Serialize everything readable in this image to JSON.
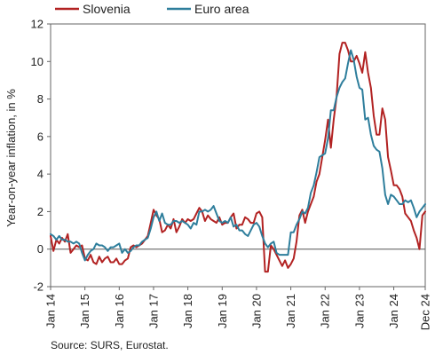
{
  "chart_data": {
    "type": "line",
    "title": "",
    "xlabel": "",
    "ylabel": "Year-on-year inflation, in %",
    "ylim": [
      -2,
      12
    ],
    "yticks": [
      -2,
      0,
      2,
      4,
      6,
      8,
      10,
      12
    ],
    "xrange": [
      2014.0,
      2024.917
    ],
    "xtick_labels": [
      "Jan 14",
      "Jan 15",
      "Jan 16",
      "Jan 17",
      "Jan 18",
      "Jan 19",
      "Jan 20",
      "Jan 21",
      "Jan 22",
      "Jan 23",
      "Jan 24",
      "Dec 24"
    ],
    "grid": false,
    "legend_position": "top",
    "source": "Source: SURS, Eurostat.",
    "colors": {
      "Slovenia": "#B22222",
      "Euro area": "#2E7E9C",
      "zero_line": "#555555"
    },
    "series": [
      {
        "name": "Slovenia",
        "x": [
          2014.0,
          2014.083,
          2014.167,
          2014.25,
          2014.333,
          2014.417,
          2014.5,
          2014.583,
          2014.667,
          2014.75,
          2014.833,
          2014.917,
          2015.0,
          2015.083,
          2015.167,
          2015.25,
          2015.333,
          2015.417,
          2015.5,
          2015.583,
          2015.667,
          2015.75,
          2015.833,
          2015.917,
          2016.0,
          2016.083,
          2016.167,
          2016.25,
          2016.333,
          2016.417,
          2016.5,
          2016.583,
          2016.667,
          2016.75,
          2016.833,
          2016.917,
          2017.0,
          2017.083,
          2017.167,
          2017.25,
          2017.333,
          2017.417,
          2017.5,
          2017.583,
          2017.667,
          2017.75,
          2017.833,
          2017.917,
          2018.0,
          2018.083,
          2018.167,
          2018.25,
          2018.333,
          2018.417,
          2018.5,
          2018.583,
          2018.667,
          2018.75,
          2018.833,
          2018.917,
          2019.0,
          2019.083,
          2019.167,
          2019.25,
          2019.333,
          2019.417,
          2019.5,
          2019.583,
          2019.667,
          2019.75,
          2019.833,
          2019.917,
          2020.0,
          2020.083,
          2020.167,
          2020.25,
          2020.333,
          2020.417,
          2020.5,
          2020.583,
          2020.667,
          2020.75,
          2020.833,
          2020.917,
          2021.0,
          2021.083,
          2021.167,
          2021.25,
          2021.333,
          2021.417,
          2021.5,
          2021.583,
          2021.667,
          2021.75,
          2021.833,
          2021.917,
          2022.0,
          2022.083,
          2022.167,
          2022.25,
          2022.333,
          2022.417,
          2022.5,
          2022.583,
          2022.667,
          2022.75,
          2022.833,
          2022.917,
          2023.0,
          2023.083,
          2023.167,
          2023.25,
          2023.333,
          2023.417,
          2023.5,
          2023.583,
          2023.667,
          2023.75,
          2023.833,
          2023.917,
          2024.0,
          2024.083,
          2024.167,
          2024.25,
          2024.333,
          2024.417,
          2024.5,
          2024.583,
          2024.667,
          2024.75,
          2024.833,
          2024.917
        ],
        "y": [
          0.7,
          -0.1,
          0.5,
          0.3,
          0.6,
          0.4,
          0.8,
          -0.2,
          0.0,
          0.2,
          0.1,
          0.2,
          -0.5,
          -0.6,
          -0.3,
          -0.7,
          -0.8,
          -0.4,
          -0.7,
          -0.5,
          -0.4,
          -0.7,
          -0.7,
          -0.5,
          -0.8,
          -0.8,
          -0.6,
          -0.5,
          0.1,
          0.2,
          0.1,
          0.2,
          0.3,
          0.5,
          0.7,
          1.4,
          2.1,
          1.8,
          1.6,
          0.9,
          1.0,
          1.3,
          1.1,
          1.6,
          0.9,
          1.2,
          1.6,
          1.4,
          1.6,
          1.5,
          1.6,
          1.9,
          2.2,
          2.0,
          1.5,
          1.8,
          1.6,
          1.5,
          1.4,
          1.7,
          1.3,
          1.4,
          1.4,
          1.7,
          1.9,
          1.1,
          1.3,
          1.3,
          1.7,
          1.6,
          1.4,
          1.4,
          1.9,
          2.0,
          1.7,
          -1.2,
          -1.2,
          0.2,
          0.0,
          -0.3,
          -0.6,
          -0.9,
          -0.6,
          -1.0,
          -0.8,
          -0.5,
          0.4,
          1.8,
          2.1,
          1.4,
          2.0,
          2.4,
          2.8,
          3.6,
          4.0,
          4.9,
          5.8,
          6.9,
          5.4,
          6.9,
          8.1,
          10.4,
          11.0,
          11.0,
          10.6,
          10.0,
          10.0,
          10.3,
          9.9,
          9.4,
          10.5,
          9.4,
          8.6,
          7.1,
          6.1,
          6.1,
          7.5,
          6.9,
          4.9,
          4.2,
          3.4,
          3.4,
          3.2,
          2.8,
          1.9,
          1.7,
          1.5,
          1.0,
          0.6,
          0.0,
          1.8,
          2.0
        ]
      },
      {
        "name": "Euro area",
        "x": [
          2014.0,
          2014.083,
          2014.167,
          2014.25,
          2014.333,
          2014.417,
          2014.5,
          2014.583,
          2014.667,
          2014.75,
          2014.833,
          2014.917,
          2015.0,
          2015.083,
          2015.167,
          2015.25,
          2015.333,
          2015.417,
          2015.5,
          2015.583,
          2015.667,
          2015.75,
          2015.833,
          2015.917,
          2016.0,
          2016.083,
          2016.167,
          2016.25,
          2016.333,
          2016.417,
          2016.5,
          2016.583,
          2016.667,
          2016.75,
          2016.833,
          2016.917,
          2017.0,
          2017.083,
          2017.167,
          2017.25,
          2017.333,
          2017.417,
          2017.5,
          2017.583,
          2017.667,
          2017.75,
          2017.833,
          2017.917,
          2018.0,
          2018.083,
          2018.167,
          2018.25,
          2018.333,
          2018.417,
          2018.5,
          2018.583,
          2018.667,
          2018.75,
          2018.833,
          2018.917,
          2019.0,
          2019.083,
          2019.167,
          2019.25,
          2019.333,
          2019.417,
          2019.5,
          2019.583,
          2019.667,
          2019.75,
          2019.833,
          2019.917,
          2020.0,
          2020.083,
          2020.167,
          2020.25,
          2020.333,
          2020.417,
          2020.5,
          2020.583,
          2020.667,
          2020.75,
          2020.833,
          2020.917,
          2021.0,
          2021.083,
          2021.167,
          2021.25,
          2021.333,
          2021.417,
          2021.5,
          2021.583,
          2021.667,
          2021.75,
          2021.833,
          2021.917,
          2022.0,
          2022.083,
          2022.167,
          2022.25,
          2022.333,
          2022.417,
          2022.5,
          2022.583,
          2022.667,
          2022.75,
          2022.833,
          2022.917,
          2023.0,
          2023.083,
          2023.167,
          2023.25,
          2023.333,
          2023.417,
          2023.5,
          2023.583,
          2023.667,
          2023.75,
          2023.833,
          2023.917,
          2024.0,
          2024.083,
          2024.167,
          2024.25,
          2024.333,
          2024.417,
          2024.5,
          2024.583,
          2024.667,
          2024.75,
          2024.833,
          2024.917
        ],
        "y": [
          0.8,
          0.7,
          0.5,
          0.7,
          0.5,
          0.5,
          0.4,
          0.4,
          0.3,
          0.4,
          0.3,
          -0.2,
          -0.6,
          -0.3,
          -0.1,
          0.0,
          0.3,
          0.2,
          0.2,
          0.1,
          -0.1,
          0.1,
          0.1,
          0.2,
          0.3,
          -0.2,
          0.0,
          -0.2,
          -0.1,
          0.1,
          0.2,
          0.2,
          0.4,
          0.5,
          0.6,
          1.1,
          1.7,
          2.0,
          1.5,
          1.9,
          1.4,
          1.3,
          1.3,
          1.5,
          1.5,
          1.4,
          1.5,
          1.4,
          1.3,
          1.1,
          1.4,
          1.3,
          2.0,
          2.0,
          2.1,
          2.0,
          2.1,
          2.3,
          1.9,
          1.5,
          1.4,
          1.5,
          1.4,
          1.7,
          1.2,
          1.3,
          1.0,
          1.0,
          0.8,
          0.7,
          1.0,
          1.3,
          1.4,
          1.2,
          0.7,
          0.3,
          0.1,
          0.3,
          0.4,
          -0.2,
          -0.3,
          -0.3,
          -0.3,
          -0.3,
          0.9,
          0.9,
          1.3,
          1.6,
          2.0,
          1.9,
          2.2,
          3.0,
          3.4,
          4.1,
          4.9,
          5.0,
          5.1,
          5.9,
          7.4,
          7.4,
          8.1,
          8.6,
          8.9,
          9.1,
          9.9,
          10.6,
          10.1,
          9.2,
          8.6,
          8.5,
          6.9,
          7.0,
          6.1,
          5.5,
          5.3,
          5.2,
          4.3,
          2.9,
          2.4,
          2.9,
          2.8,
          2.6,
          2.4,
          2.4,
          2.6,
          2.5,
          2.6,
          2.2,
          1.7,
          2.0,
          2.2,
          2.4
        ]
      }
    ]
  }
}
